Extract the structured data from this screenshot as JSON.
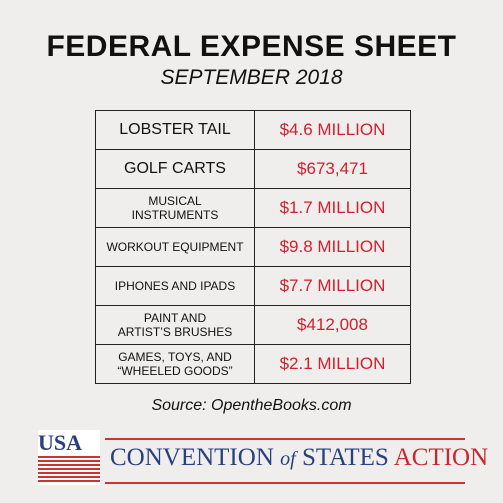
{
  "header": {
    "title": "FEDERAL EXPENSE SHEET",
    "subtitle": "SEPTEMBER 2018"
  },
  "table": {
    "rows": [
      [
        "LOBSTER TAIL",
        "$4.6 MILLION"
      ],
      [
        "GOLF CARTS",
        "$673,471"
      ],
      [
        "MUSICAL\nINSTRUMENTS",
        "$1.7 MILLION"
      ],
      [
        "WORKOUT EQUIPMENT",
        "$9.8 MILLION"
      ],
      [
        "IPHONES AND IPADS",
        "$7.7 MILLION"
      ],
      [
        "PAINT AND\nARTIST’S BRUSHES",
        "$412,008"
      ],
      [
        "GAMES, TOYS, AND\n“WHEELED GOODS”",
        "$2.1 MILLION"
      ]
    ]
  },
  "source": "Source: OpentheBooks.com",
  "logo": {
    "badge": "USA",
    "name": [
      "CONVENTION",
      "of",
      "STATES",
      "ACTION"
    ]
  }
}
